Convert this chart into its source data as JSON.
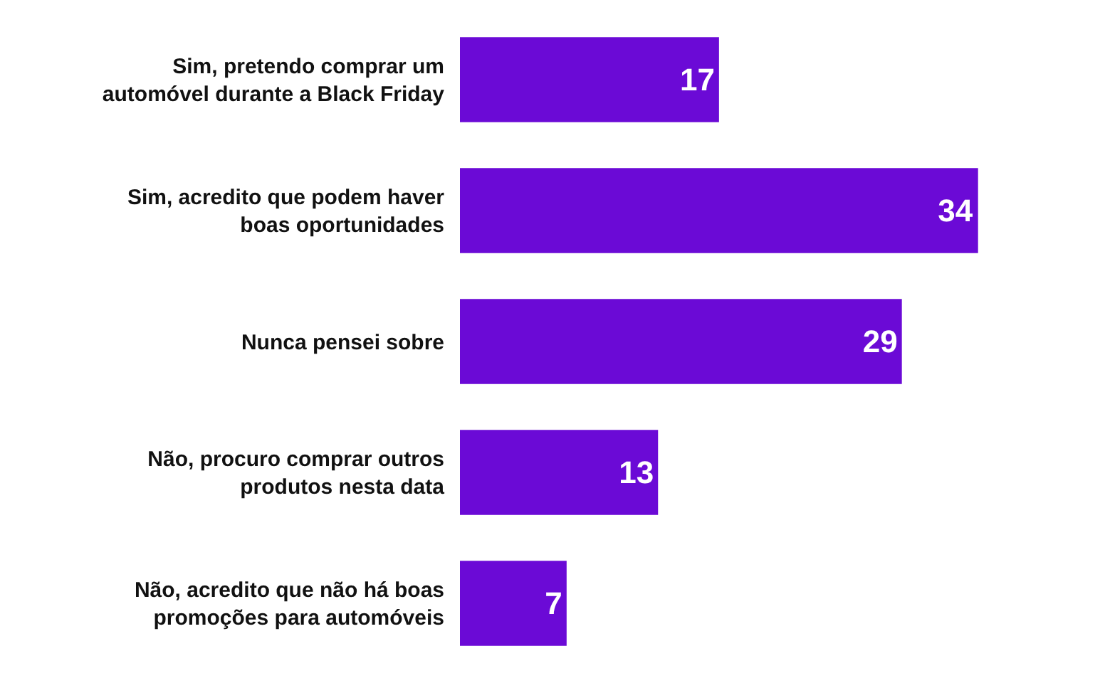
{
  "chart_data": {
    "type": "bar",
    "orientation": "horizontal",
    "categories": [
      "Sim, pretendo comprar um automóvel durante a Black Friday",
      "Sim, acredito que podem haver boas oportunidades",
      "Nunca pensei sobre",
      "Não, procuro comprar outros produtos nesta data",
      "Não, acredito que não há boas promoções para automóveis"
    ],
    "values": [
      17,
      34,
      29,
      13,
      7
    ],
    "color": "#6b0ad6",
    "data_labels": true
  }
}
